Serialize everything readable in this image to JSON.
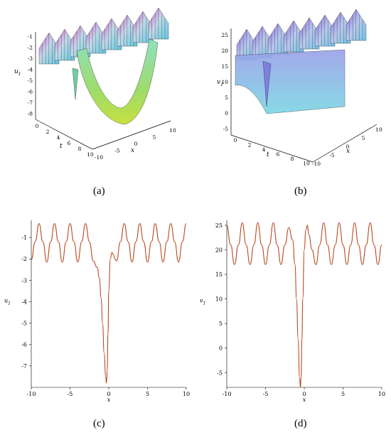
{
  "captions": [
    "(a)",
    "(b)",
    "(c)",
    "(d)"
  ],
  "surface_a": {
    "zlabel": "u",
    "zlabel_sub": "1",
    "xlabel": "x",
    "tlabel": "t",
    "z_ticks": [
      "-1",
      "-2",
      "-3",
      "-4",
      "-5",
      "-6",
      "-7",
      "-8"
    ],
    "t_ticks": [
      "0",
      "2",
      "4",
      "6",
      "8",
      "10"
    ],
    "x_ticks": [
      "-10",
      "-5",
      "0",
      "5",
      "10"
    ]
  },
  "surface_b": {
    "zlabel": "v",
    "zlabel_sub": "1",
    "xlabel": "x",
    "tlabel": "t",
    "z_ticks": [
      "25",
      "20",
      "15",
      "10",
      "5",
      "0",
      "-5"
    ],
    "t_ticks": [
      "0",
      "2",
      "4",
      "6",
      "8",
      "10"
    ],
    "x_ticks": [
      "-10",
      "-5",
      "0",
      "5",
      "10"
    ]
  },
  "chart_data": [
    {
      "type": "line",
      "panel": "(c)",
      "xlabel": "x",
      "ylabel": "u",
      "ylabel_sub": "1",
      "xlim": [
        -10,
        10
      ],
      "ylim": [
        -8,
        -0.2
      ],
      "xticks": [
        -10,
        -5,
        0,
        5,
        10
      ],
      "yticks": [
        -1,
        -2,
        -3,
        -4,
        -5,
        -6,
        -7
      ],
      "grid": false,
      "color": "#b84a1e",
      "series": [
        {
          "x": [
            -10,
            -9.5,
            -9,
            -8.5,
            -8,
            -7.5,
            -7,
            -6.5,
            -6,
            -5.5,
            -5,
            -4.5,
            -4,
            -3.5,
            -3,
            -2.5,
            -2,
            -1.5,
            -1.2,
            -1,
            -0.8,
            -0.6,
            -0.4,
            -0.3,
            -0.2,
            -0.1,
            0,
            0.2,
            0.4,
            0.6,
            0.8,
            1,
            1.5,
            2,
            2.5,
            3,
            3.5,
            4,
            4.5,
            5,
            5.5,
            6,
            6.5,
            7,
            7.5,
            8,
            8.5,
            9,
            9.5,
            10
          ],
          "y": [
            -2.05,
            -1.2,
            -0.35,
            -1.2,
            -2.15,
            -1.2,
            -0.35,
            -1.2,
            -2.15,
            -1.2,
            -0.35,
            -1.2,
            -2.15,
            -1.2,
            -0.35,
            -1.2,
            -2.1,
            -2.4,
            -2.9,
            -3.8,
            -5.0,
            -6.4,
            -7.5,
            -7.8,
            -7.2,
            -5.5,
            -3.5,
            -2.0,
            -1.7,
            -1.8,
            -2.0,
            -2.1,
            -1.2,
            -0.35,
            -1.2,
            -2.15,
            -1.2,
            -0.35,
            -1.2,
            -2.15,
            -1.2,
            -0.35,
            -1.2,
            -2.15,
            -1.2,
            -0.35,
            -1.2,
            -2.15,
            -1.2,
            -0.35
          ]
        }
      ]
    },
    {
      "type": "line",
      "panel": "(d)",
      "xlabel": "x",
      "ylabel": "v",
      "ylabel_sub": "1",
      "xlim": [
        -10,
        10
      ],
      "ylim": [
        -8,
        26
      ],
      "xticks": [
        -10,
        -5,
        0,
        5,
        10
      ],
      "yticks": [
        25,
        20,
        15,
        10,
        5,
        0,
        -5
      ],
      "grid": false,
      "color": "#b84a1e",
      "series": [
        {
          "x": [
            -10,
            -9.5,
            -9,
            -8.5,
            -8,
            -7.5,
            -7,
            -6.5,
            -6,
            -5.5,
            -5,
            -4.5,
            -4,
            -3.5,
            -3,
            -2.5,
            -2,
            -1.5,
            -1.2,
            -1,
            -0.8,
            -0.6,
            -0.5,
            -0.4,
            -0.3,
            -0.2,
            0,
            0.2,
            0.4,
            0.6,
            1,
            1.5,
            2,
            2.5,
            3,
            3.5,
            4,
            4.5,
            5,
            5.5,
            6,
            6.5,
            7,
            7.5,
            8,
            8.5,
            9,
            9.5,
            10
          ],
          "y": [
            25,
            21,
            17,
            21,
            25.5,
            21,
            17,
            21,
            25.5,
            21,
            17,
            21,
            25.5,
            21,
            17,
            21,
            24.5,
            22,
            17,
            10,
            2,
            -6,
            -8,
            -6,
            2,
            10,
            20,
            24,
            25,
            23,
            20,
            17,
            21,
            25.5,
            21,
            17,
            21,
            25.5,
            21,
            17,
            21,
            25.5,
            21,
            17,
            21,
            25.5,
            21,
            17,
            21
          ]
        }
      ]
    }
  ]
}
